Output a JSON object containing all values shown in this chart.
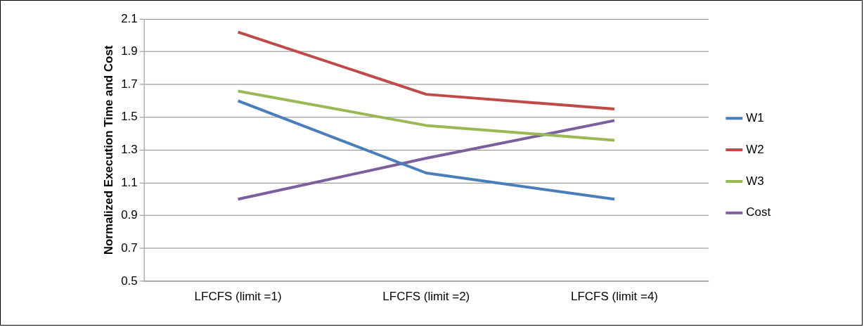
{
  "chart_data": {
    "type": "line",
    "ylabel": "Normalized Execution Time and Cost",
    "categories": [
      "LFCFS (limit =1)",
      "LFCFS (limit =2)",
      "LFCFS (limit =4)"
    ],
    "series": [
      {
        "name": "W1",
        "color": "#4a7ebb",
        "values": [
          1.6,
          1.16,
          1.0
        ]
      },
      {
        "name": "W2",
        "color": "#be4b48",
        "values": [
          2.02,
          1.64,
          1.55
        ]
      },
      {
        "name": "W3",
        "color": "#98b954",
        "values": [
          1.66,
          1.45,
          1.36
        ]
      },
      {
        "name": "Cost",
        "color": "#7d5fa0",
        "values": [
          1.0,
          1.25,
          1.48
        ]
      }
    ],
    "ylim": [
      0.5,
      2.1
    ],
    "yticks": [
      0.5,
      0.7,
      0.9,
      1.1,
      1.3,
      1.5,
      1.7,
      1.9,
      2.1
    ],
    "grid": "y",
    "legend": "right",
    "marker": "none",
    "line_style": "solid"
  }
}
